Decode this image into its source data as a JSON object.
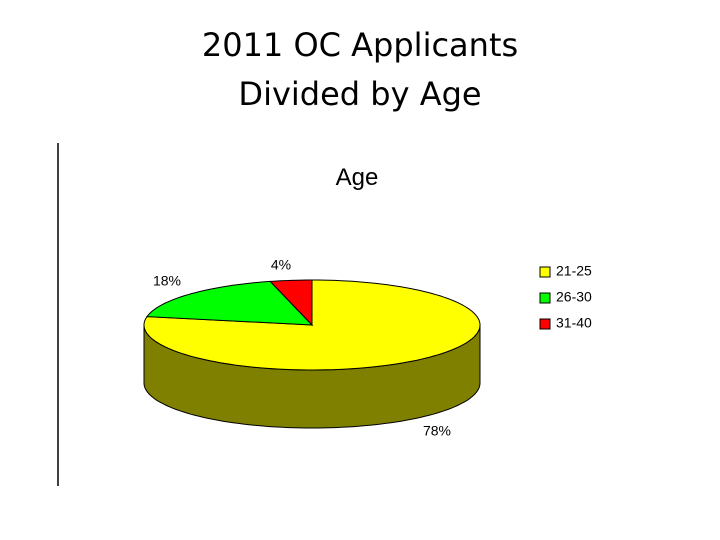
{
  "slide": {
    "title_lines": [
      "2011 OC Applicants",
      "Divided by Age"
    ]
  },
  "chart_data": {
    "type": "pie3d",
    "title": "Age",
    "categories": [
      "21-25",
      "26-30",
      "31-40"
    ],
    "values": [
      78,
      18,
      4
    ],
    "value_labels": [
      "78%",
      "18%",
      "4%"
    ],
    "colors": [
      "#ffff00",
      "#00ff00",
      "#ff0000"
    ],
    "side_colors": [
      "#808000",
      "#008000",
      "#800000"
    ],
    "legend": "right"
  }
}
